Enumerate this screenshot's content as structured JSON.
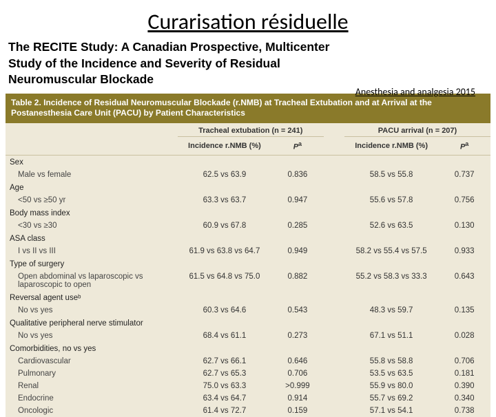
{
  "slide": {
    "title": "Curarisation résiduelle",
    "study_title": "The RECITE Study: A Canadian Prospective, Multicenter Study of the Incidence and Severity of Residual Neuromuscular Blockade",
    "citation": "Anesthesia and analgesia 2015"
  },
  "table": {
    "header": "Table 2.  Incidence of Residual Neuromuscular Blockade (r.NMB) at Tracheal Extubation and at Arrival at the Postanesthesia Care Unit (PACU) by Patient Characteristics",
    "group1": "Tracheal extubation (n = 241)",
    "group2": "PACU arrival (n = 207)",
    "col_inc": "Incidence r.NMB (%)",
    "col_p": "P",
    "col_p_sup": "a",
    "header_bg": "#8a7a2a",
    "body_bg": "#eee9d9",
    "rows": [
      {
        "type": "cat",
        "label": "Sex"
      },
      {
        "type": "sub",
        "label": "Male vs female",
        "v1": "62.5 vs 63.9",
        "p1": "0.836",
        "v2": "58.5 vs 55.8",
        "p2": "0.737"
      },
      {
        "type": "cat",
        "label": "Age"
      },
      {
        "type": "sub",
        "label": "<50 vs ≥50 yr",
        "v1": "63.3 vs 63.7",
        "p1": "0.947",
        "v2": "55.6 vs 57.8",
        "p2": "0.756"
      },
      {
        "type": "cat",
        "label": "Body mass index"
      },
      {
        "type": "sub",
        "label": "<30 vs ≥30",
        "v1": "60.9 vs 67.8",
        "p1": "0.285",
        "v2": "52.6 vs 63.5",
        "p2": "0.130"
      },
      {
        "type": "cat",
        "label": "ASA class"
      },
      {
        "type": "sub",
        "label": "I vs II vs III",
        "v1": "61.9 vs 63.8 vs 64.7",
        "p1": "0.949",
        "v2": "58.2 vs 55.4 vs 57.5",
        "p2": "0.933"
      },
      {
        "type": "cat",
        "label": "Type of surgery"
      },
      {
        "type": "sub",
        "label": "Open abdominal vs laparoscopic vs laparoscopic to open",
        "v1": "61.5 vs 64.8 vs 75.0",
        "p1": "0.882",
        "v2": "55.2 vs 58.3 vs 33.3",
        "p2": "0.643"
      },
      {
        "type": "cat",
        "label": "Reversal agent useᵇ"
      },
      {
        "type": "sub",
        "label": "No vs yes",
        "v1": "60.3 vs 64.6",
        "p1": "0.543",
        "v2": "48.3 vs 59.7",
        "p2": "0.135"
      },
      {
        "type": "cat",
        "label": "Qualitative peripheral nerve stimulator"
      },
      {
        "type": "sub",
        "label": "No vs yes",
        "v1": "68.4 vs 61.1",
        "p1": "0.273",
        "v2": "67.1 vs 51.1",
        "p2": "0.028"
      },
      {
        "type": "cat",
        "label": "Comorbidities, no vs yes"
      },
      {
        "type": "sub",
        "label": "Cardiovascular",
        "v1": "62.7 vs 66.1",
        "p1": "0.646",
        "v2": "55.8 vs 58.8",
        "p2": "0.706"
      },
      {
        "type": "sub",
        "label": "Pulmonary",
        "v1": "62.7 vs 65.3",
        "p1": "0.706",
        "v2": "53.5 vs 63.5",
        "p2": "0.181"
      },
      {
        "type": "sub",
        "label": "Renal",
        "v1": "75.0 vs 63.3",
        "p1": ">0.999",
        "v2": "55.9 vs 80.0",
        "p2": "0.390"
      },
      {
        "type": "sub",
        "label": "Endocrine",
        "v1": "63.4 vs 64.7",
        "p1": "0.914",
        "v2": "55.7 vs 69.2",
        "p2": "0.340"
      },
      {
        "type": "sub",
        "label": "Oncologic",
        "v1": "61.4 vs 72.7",
        "p1": "0.159",
        "v2": "57.1 vs 54.1",
        "p2": "0.738"
      }
    ]
  }
}
